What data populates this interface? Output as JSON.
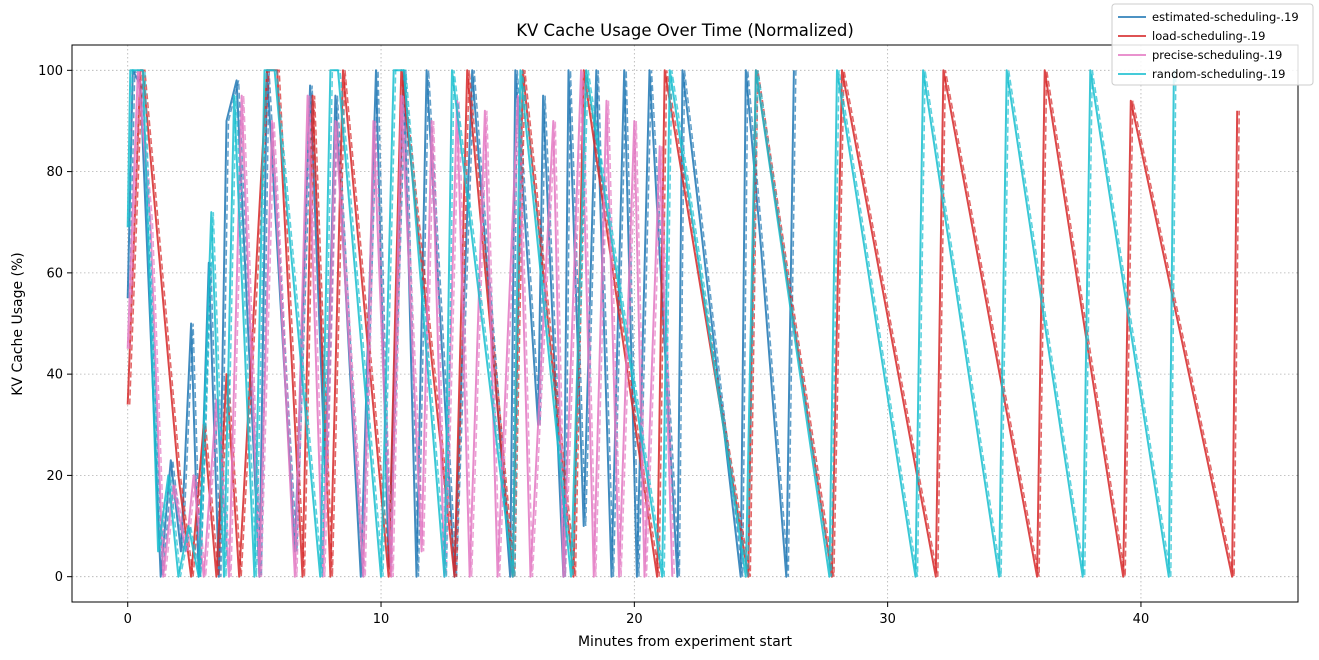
{
  "chart_data": {
    "type": "line",
    "title": "KV Cache Usage Over Time (Normalized)",
    "xlabel": "Minutes from experiment start",
    "ylabel": "KV Cache Usage (%)",
    "xlim": [
      -2.2,
      46.2
    ],
    "ylim": [
      -5,
      105
    ],
    "xticks": [
      0,
      10,
      20,
      30,
      40
    ],
    "yticks": [
      0,
      20,
      40,
      60,
      80,
      100
    ],
    "grid": true,
    "legend_position": "top-right",
    "series": [
      {
        "name": "estimated-scheduling-.19",
        "color": "#1f77b4",
        "x": [
          0.0,
          0.2,
          0.5,
          1.3,
          1.7,
          2.1,
          2.5,
          2.8,
          3.2,
          3.6,
          3.9,
          4.3,
          5.2,
          5.5,
          6.6,
          7.2,
          7.8,
          8.2,
          9.2,
          9.8,
          10.3,
          10.9,
          11.4,
          11.8,
          12.9,
          13.6,
          15.1,
          15.3,
          16.2,
          16.4,
          17.2,
          17.4,
          18.0,
          18.5,
          19.1,
          19.6,
          20.1,
          20.6,
          21.7,
          21.9,
          22.6,
          24.2,
          24.4,
          25.0,
          26.0,
          26.3
        ],
        "values": [
          55,
          100,
          97,
          0,
          23,
          5,
          50,
          0,
          62,
          0,
          90,
          98,
          0,
          100,
          5,
          97,
          20,
          95,
          0,
          100,
          2,
          100,
          0,
          100,
          0,
          100,
          0,
          100,
          30,
          95,
          0,
          100,
          10,
          100,
          0,
          100,
          0,
          100,
          0,
          100,
          70,
          0,
          100,
          65,
          0,
          100
        ]
      },
      {
        "name": "load-scheduling-.19",
        "color": "#d62728",
        "x": [
          0.0,
          0.5,
          0.6,
          2.0,
          2.5,
          3.0,
          3.5,
          3.9,
          4.4,
          5.5,
          5.9,
          6.9,
          7.3,
          8.0,
          8.5,
          10.3,
          10.8,
          12.9,
          13.4,
          15.2,
          15.6,
          17.6,
          18.0,
          20.9,
          21.2,
          24.5,
          24.8,
          27.8,
          28.2,
          31.9,
          32.2,
          35.9,
          36.2,
          39.3,
          39.6,
          43.6,
          43.8
        ],
        "values": [
          34,
          100,
          100,
          20,
          0,
          30,
          0,
          40,
          0,
          100,
          100,
          0,
          95,
          0,
          100,
          0,
          100,
          0,
          100,
          0,
          100,
          0,
          100,
          0,
          100,
          0,
          100,
          0,
          100,
          0,
          100,
          0,
          100,
          0,
          94,
          0,
          92
        ]
      },
      {
        "name": "precise-scheduling-.19",
        "color": "#e377c2",
        "x": [
          0.0,
          0.4,
          0.9,
          1.4,
          1.8,
          2.3,
          2.6,
          3.0,
          3.5,
          4.0,
          4.5,
          5.2,
          5.7,
          6.6,
          7.1,
          7.7,
          8.2,
          9.3,
          9.7,
          10.4,
          10.8,
          11.6,
          12.0,
          12.5,
          13.0,
          13.5,
          14.1,
          14.6,
          15.4,
          15.9,
          16.8,
          17.2,
          17.9,
          18.4,
          18.9,
          19.4,
          20.0,
          20.4,
          21.0,
          21.5
        ],
        "values": [
          45,
          100,
          70,
          0,
          18,
          5,
          20,
          0,
          35,
          0,
          95,
          0,
          90,
          0,
          95,
          0,
          90,
          0,
          90,
          0,
          95,
          5,
          90,
          0,
          94,
          0,
          92,
          0,
          95,
          0,
          90,
          0,
          100,
          0,
          94,
          0,
          90,
          0,
          85,
          0
        ]
      },
      {
        "name": "random-scheduling-.19",
        "color": "#17becf",
        "x": [
          0.0,
          0.1,
          0.6,
          1.2,
          1.6,
          2.0,
          2.4,
          2.8,
          3.3,
          3.8,
          4.2,
          5.0,
          5.4,
          5.8,
          7.6,
          8.0,
          8.3,
          10.0,
          10.5,
          10.9,
          12.5,
          12.8,
          15.2,
          15.5,
          17.5,
          18.1,
          21.1,
          21.4,
          24.4,
          24.8,
          27.7,
          28.0,
          31.1,
          31.4,
          34.4,
          34.7,
          37.7,
          38.0,
          41.1,
          41.3
        ],
        "values": [
          69,
          100,
          100,
          5,
          20,
          0,
          10,
          0,
          72,
          0,
          95,
          0,
          100,
          100,
          0,
          100,
          100,
          0,
          100,
          100,
          0,
          100,
          0,
          100,
          0,
          100,
          0,
          100,
          0,
          100,
          0,
          100,
          0,
          100,
          0,
          100,
          0,
          100,
          0,
          100
        ]
      }
    ]
  }
}
